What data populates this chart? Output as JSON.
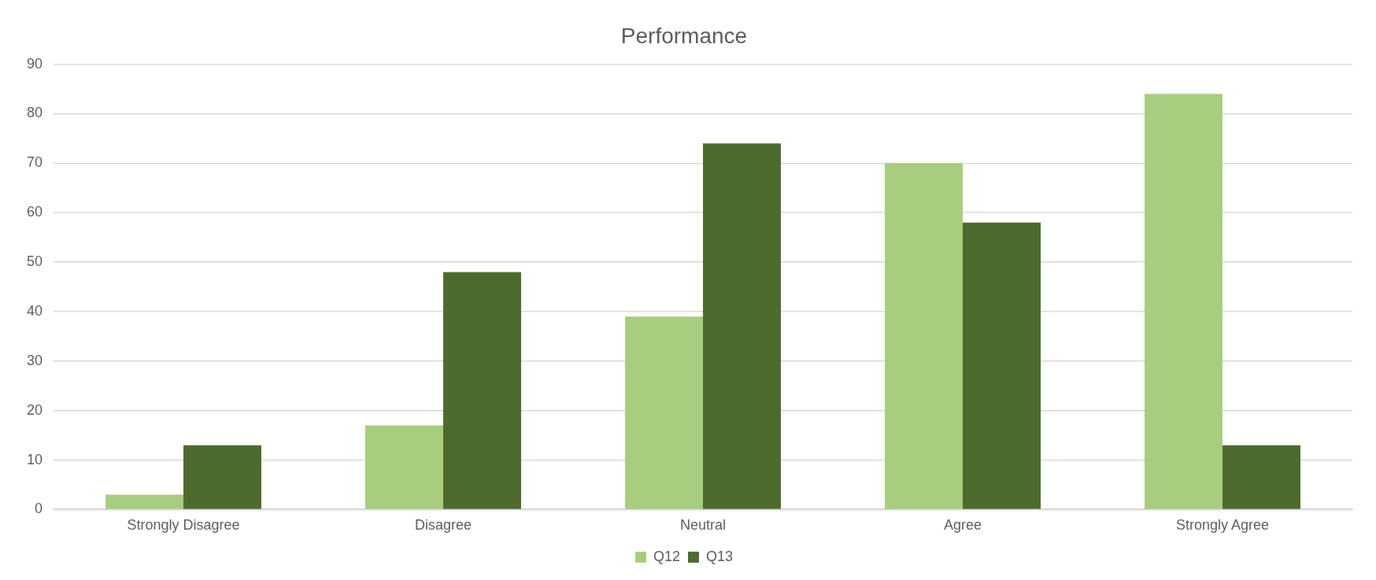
{
  "chart_data": {
    "type": "bar",
    "title": "Performance",
    "categories": [
      "Strongly Disagree",
      "Disagree",
      "Neutral",
      "Agree",
      "Strongly Agree"
    ],
    "series": [
      {
        "name": "Q12",
        "color": "#a9cd7f",
        "values": [
          3,
          17,
          39,
          70,
          84
        ]
      },
      {
        "name": "Q13",
        "color": "#4e6b2e",
        "values": [
          13,
          48,
          74,
          58,
          13
        ]
      }
    ],
    "ylim": [
      0,
      90
    ],
    "yticks": [
      0,
      10,
      20,
      30,
      40,
      50,
      60,
      70,
      80,
      90
    ],
    "grid": "y",
    "legend": "bottom"
  }
}
